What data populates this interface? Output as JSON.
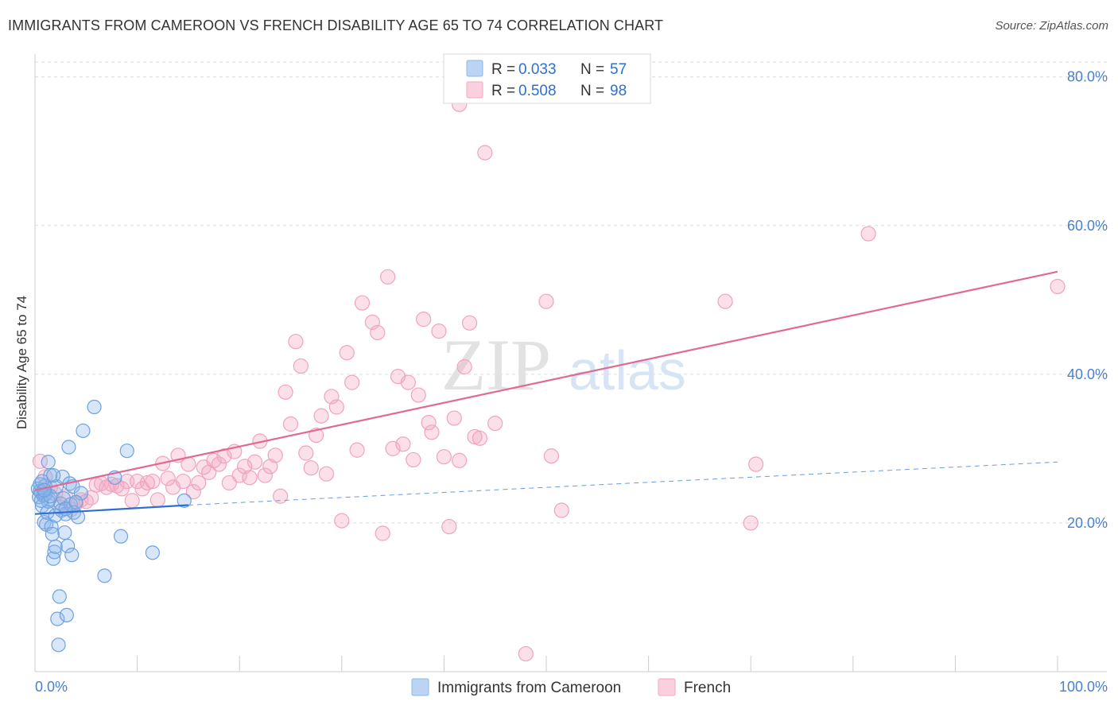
{
  "title": "IMMIGRANTS FROM CAMEROON VS FRENCH DISABILITY AGE 65 TO 74 CORRELATION CHART",
  "source": "Source: ZipAtlas.com",
  "watermark": {
    "zip": "ZIP",
    "atlas": "atlas"
  },
  "legend_top": [
    {
      "r_label": "R = ",
      "r_value": "0.033",
      "n_label": "N = ",
      "n_value": "57",
      "color": "#8db7ea"
    },
    {
      "r_label": "R = ",
      "r_value": "0.508",
      "n_label": "N = ",
      "n_value": "98",
      "color": "#f4a7c0"
    }
  ],
  "legend_bottom": [
    "Immigrants from Cameroon",
    "French"
  ],
  "colors": {
    "blue": "#8db7ea",
    "blue_line": "#2f6fd0",
    "pink": "#f4a7c0",
    "pink_line": "#e06a92",
    "tick_blue": "#4a7fd0"
  },
  "chart_data": {
    "type": "scatter",
    "title": "IMMIGRANTS FROM CAMEROON VS FRENCH DISABILITY AGE 65 TO 74 CORRELATION CHART",
    "xlabel": "",
    "ylabel": "Disability Age 65 to 74",
    "xlim": [
      0,
      100
    ],
    "ylim": [
      0,
      82
    ],
    "x_tick_labels": [
      "0.0%",
      "100.0%"
    ],
    "y_ticks": [
      20,
      40,
      60,
      80
    ],
    "y_tick_labels": [
      "20.0%",
      "40.0%",
      "60.0%",
      "80.0%"
    ],
    "grid": true,
    "legend_position": "top-center",
    "series": [
      {
        "name": "Immigrants from Cameroon",
        "color": "#8db7ea",
        "points": [
          [
            0.3,
            24.6
          ],
          [
            0.4,
            23.5
          ],
          [
            0.5,
            25.2
          ],
          [
            0.6,
            24.1
          ],
          [
            0.7,
            22.3
          ],
          [
            0.8,
            23.7
          ],
          [
            0.9,
            20.1
          ],
          [
            1.0,
            25.0
          ],
          [
            1.1,
            19.8
          ],
          [
            1.2,
            21.4
          ],
          [
            1.3,
            28.2
          ],
          [
            1.4,
            23.2
          ],
          [
            1.5,
            26.4
          ],
          [
            1.6,
            19.5
          ],
          [
            1.7,
            18.5
          ],
          [
            1.8,
            15.2
          ],
          [
            1.9,
            16.1
          ],
          [
            2.0,
            16.8
          ],
          [
            2.1,
            24.9
          ],
          [
            2.2,
            7.1
          ],
          [
            2.3,
            3.6
          ],
          [
            2.4,
            10.1
          ],
          [
            2.5,
            22.6
          ],
          [
            2.6,
            21.7
          ],
          [
            2.7,
            26.2
          ],
          [
            2.8,
            23.3
          ],
          [
            2.9,
            18.7
          ],
          [
            3.0,
            21.2
          ],
          [
            3.1,
            7.6
          ],
          [
            3.2,
            16.9
          ],
          [
            3.3,
            30.2
          ],
          [
            3.4,
            25.3
          ],
          [
            3.5,
            22.5
          ],
          [
            3.6,
            15.7
          ],
          [
            3.7,
            24.9
          ],
          [
            3.8,
            21.4
          ],
          [
            4.2,
            20.8
          ],
          [
            4.5,
            24.0
          ],
          [
            4.7,
            32.4
          ],
          [
            5.8,
            35.6
          ],
          [
            6.8,
            12.9
          ],
          [
            7.8,
            26.1
          ],
          [
            8.4,
            18.2
          ],
          [
            9.0,
            29.7
          ],
          [
            11.5,
            16.0
          ],
          [
            14.6,
            23.0
          ],
          [
            0.5,
            24.3
          ],
          [
            1.0,
            23.8
          ],
          [
            0.7,
            25.6
          ],
          [
            1.3,
            22.9
          ],
          [
            2.0,
            21.0
          ],
          [
            0.6,
            23.0
          ],
          [
            1.5,
            23.6
          ],
          [
            3.0,
            21.9
          ],
          [
            1.8,
            26.4
          ],
          [
            0.9,
            24.4
          ],
          [
            4.0,
            22.8
          ]
        ],
        "trend": {
          "solid": [
            [
              0,
              21.2
            ],
            [
              15,
              22.4
            ]
          ],
          "dashed": [
            [
              15,
              22.4
            ],
            [
              100,
              28.2
            ]
          ]
        }
      },
      {
        "name": "French",
        "color": "#f4a7c0",
        "points": [
          [
            0.5,
            28.3
          ],
          [
            1.0,
            26.2
          ],
          [
            1.5,
            24.8
          ],
          [
            2.0,
            23.9
          ],
          [
            2.5,
            22.1
          ],
          [
            3.0,
            23.5
          ],
          [
            3.5,
            21.8
          ],
          [
            4.0,
            22.6
          ],
          [
            4.5,
            23.1
          ],
          [
            5.0,
            22.9
          ],
          [
            5.5,
            23.4
          ],
          [
            6.0,
            25.1
          ],
          [
            6.5,
            25.3
          ],
          [
            7.0,
            24.8
          ],
          [
            7.5,
            25.2
          ],
          [
            8.0,
            25.0
          ],
          [
            8.5,
            24.6
          ],
          [
            9.0,
            25.6
          ],
          [
            9.5,
            23.0
          ],
          [
            10.0,
            25.6
          ],
          [
            10.5,
            24.6
          ],
          [
            11.0,
            25.4
          ],
          [
            11.5,
            25.6
          ],
          [
            12.0,
            23.1
          ],
          [
            12.5,
            28.0
          ],
          [
            13.0,
            26.0
          ],
          [
            13.5,
            24.8
          ],
          [
            14.0,
            29.1
          ],
          [
            14.5,
            25.6
          ],
          [
            15.0,
            27.9
          ],
          [
            15.5,
            24.2
          ],
          [
            16.0,
            25.4
          ],
          [
            16.5,
            27.5
          ],
          [
            17.0,
            26.8
          ],
          [
            17.5,
            28.4
          ],
          [
            18.0,
            27.9
          ],
          [
            18.5,
            29.0
          ],
          [
            19.0,
            25.4
          ],
          [
            19.5,
            29.6
          ],
          [
            20.0,
            26.4
          ],
          [
            20.5,
            27.6
          ],
          [
            21.0,
            26.1
          ],
          [
            21.5,
            28.2
          ],
          [
            22.0,
            31.0
          ],
          [
            22.5,
            26.4
          ],
          [
            23.0,
            27.6
          ],
          [
            23.5,
            29.1
          ],
          [
            24.0,
            23.6
          ],
          [
            24.5,
            37.6
          ],
          [
            25.0,
            33.3
          ],
          [
            25.5,
            44.4
          ],
          [
            26.0,
            41.1
          ],
          [
            26.5,
            29.4
          ],
          [
            27.0,
            27.4
          ],
          [
            27.5,
            31.8
          ],
          [
            28.0,
            34.4
          ],
          [
            28.5,
            26.6
          ],
          [
            29.0,
            37.0
          ],
          [
            29.5,
            35.6
          ],
          [
            30.0,
            20.3
          ],
          [
            30.5,
            42.9
          ],
          [
            31.0,
            38.9
          ],
          [
            31.5,
            29.8
          ],
          [
            32.0,
            49.6
          ],
          [
            33.0,
            47.0
          ],
          [
            33.5,
            45.6
          ],
          [
            34.0,
            18.6
          ],
          [
            34.5,
            53.1
          ],
          [
            35.0,
            30.0
          ],
          [
            35.5,
            39.7
          ],
          [
            36.0,
            30.6
          ],
          [
            36.5,
            38.9
          ],
          [
            37.0,
            28.5
          ],
          [
            37.5,
            37.2
          ],
          [
            38.0,
            47.4
          ],
          [
            38.5,
            33.5
          ],
          [
            38.8,
            32.2
          ],
          [
            39.5,
            45.8
          ],
          [
            40.0,
            28.9
          ],
          [
            40.5,
            19.5
          ],
          [
            41.0,
            34.1
          ],
          [
            41.5,
            28.4
          ],
          [
            42.0,
            41.0
          ],
          [
            42.5,
            46.9
          ],
          [
            43.0,
            31.6
          ],
          [
            43.5,
            31.4
          ],
          [
            44.0,
            69.8
          ],
          [
            45.0,
            33.4
          ],
          [
            48.0,
            2.4
          ],
          [
            50.0,
            49.8
          ],
          [
            50.5,
            29.0
          ],
          [
            51.5,
            21.7
          ],
          [
            67.5,
            49.8
          ],
          [
            70.0,
            20.0
          ],
          [
            70.5,
            27.9
          ],
          [
            81.5,
            58.9
          ],
          [
            100.0,
            51.8
          ],
          [
            41.5,
            76.3
          ]
        ],
        "trend": {
          "solid": [
            [
              0,
              24.4
            ],
            [
              100,
              53.8
            ]
          ]
        }
      }
    ]
  }
}
